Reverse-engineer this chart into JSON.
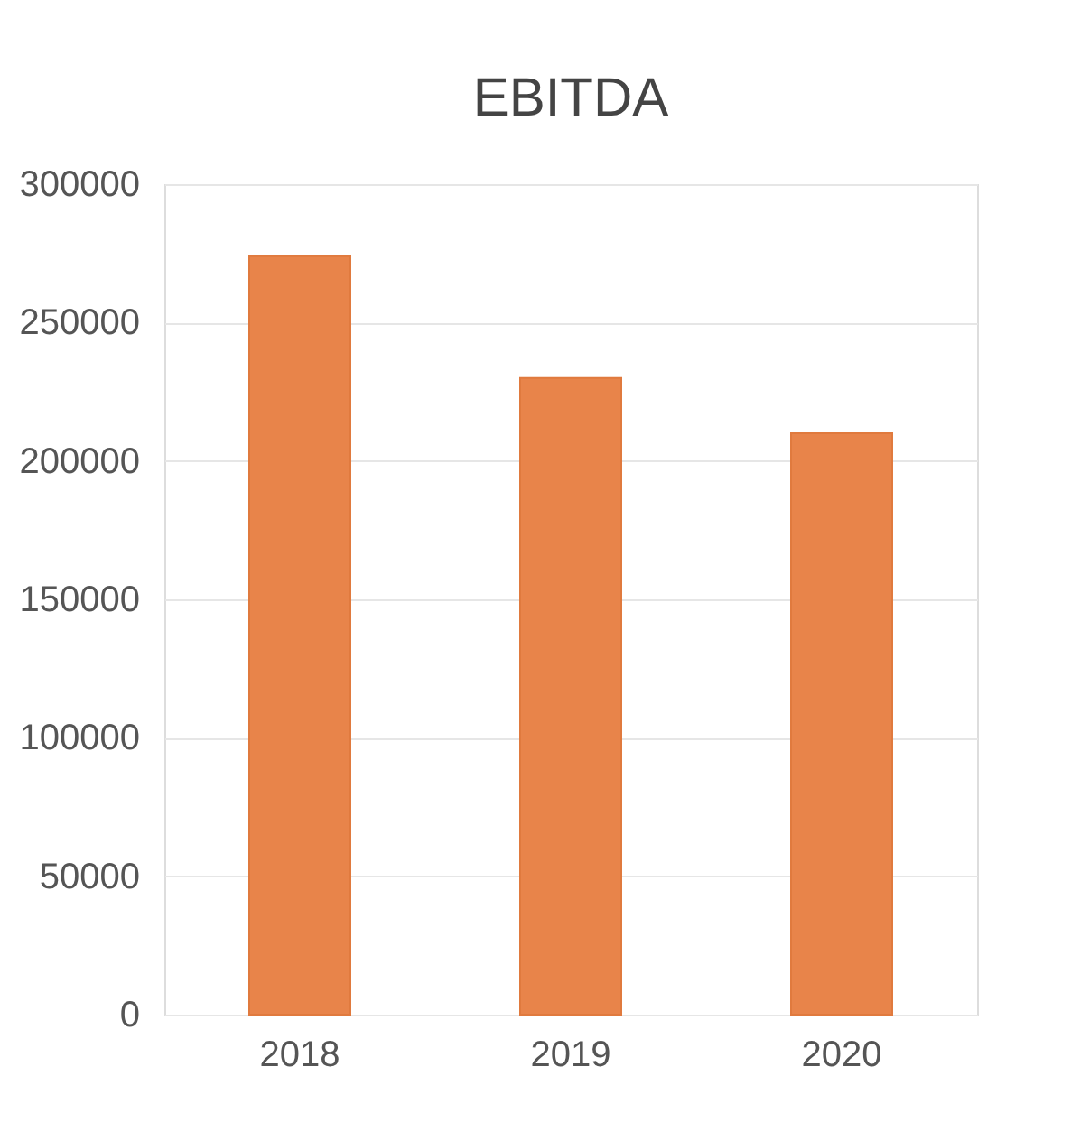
{
  "chart_data": {
    "type": "bar",
    "title": "EBITDA",
    "categories": [
      "2018",
      "2019",
      "2020"
    ],
    "values": [
      274000,
      230000,
      210000
    ],
    "color": "#e8844a",
    "ylim": [
      0,
      300000
    ],
    "yticks": [
      0,
      50000,
      100000,
      150000,
      200000,
      250000,
      300000
    ],
    "grid": "y"
  }
}
